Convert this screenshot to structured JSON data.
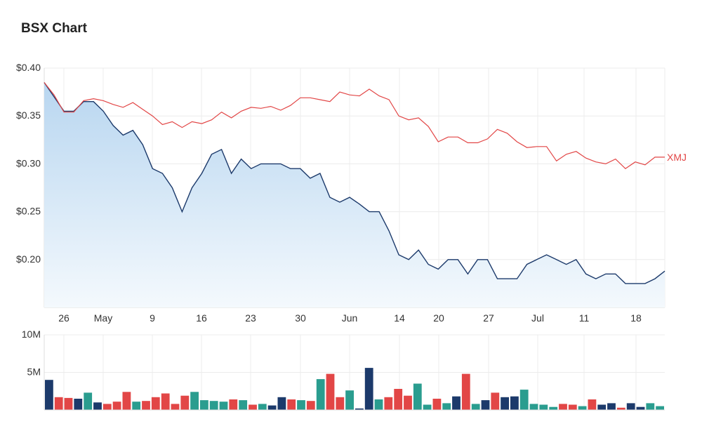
{
  "title": "BSX Chart",
  "colors": {
    "bsx_line": "#1c3a6b",
    "bsx_fill_top": "#b8d6f0",
    "bsx_fill_bottom": "#f4f9fd",
    "xmj_line": "#e24646",
    "vol_navy": "#1c3a6b",
    "vol_red": "#e24646",
    "vol_teal": "#2a9d8f",
    "grid": "#ececec"
  },
  "chart_data": [
    {
      "type": "line",
      "x_tick_labels": [
        "26",
        "May",
        "9",
        "16",
        "23",
        "30",
        "Jun",
        "14",
        "20",
        "27",
        "Jul",
        "11",
        "18"
      ],
      "y_tick_labels": [
        "$0.40",
        "$0.35",
        "$0.30",
        "$0.25",
        "$0.20"
      ],
      "ylim": [
        0.15,
        0.4
      ],
      "yticks": [
        0.4,
        0.35,
        0.3,
        0.25,
        0.2
      ],
      "grid": true,
      "series": [
        {
          "name": "",
          "style": "area",
          "values": [
            0.385,
            0.37,
            0.355,
            0.355,
            0.365,
            0.365,
            0.355,
            0.34,
            0.33,
            0.335,
            0.32,
            0.295,
            0.29,
            0.275,
            0.25,
            0.275,
            0.29,
            0.31,
            0.315,
            0.29,
            0.305,
            0.295,
            0.3,
            0.3,
            0.3,
            0.295,
            0.295,
            0.285,
            0.29,
            0.265,
            0.26,
            0.265,
            0.258,
            0.25,
            0.25,
            0.23,
            0.205,
            0.2,
            0.21,
            0.195,
            0.19,
            0.2,
            0.2,
            0.185,
            0.2,
            0.2,
            0.18,
            0.18,
            0.18,
            0.195,
            0.2,
            0.205,
            0.2,
            0.195,
            0.2,
            0.185,
            0.18,
            0.185,
            0.185,
            0.175,
            0.175,
            0.175,
            0.18,
            0.188
          ]
        },
        {
          "name": "XMJ",
          "style": "line",
          "values": [
            0.385,
            0.372,
            0.354,
            0.354,
            0.366,
            0.368,
            0.366,
            0.362,
            0.359,
            0.364,
            0.357,
            0.35,
            0.341,
            0.344,
            0.338,
            0.344,
            0.342,
            0.346,
            0.354,
            0.348,
            0.355,
            0.359,
            0.358,
            0.36,
            0.356,
            0.361,
            0.369,
            0.369,
            0.367,
            0.365,
            0.375,
            0.372,
            0.371,
            0.378,
            0.371,
            0.367,
            0.35,
            0.346,
            0.348,
            0.339,
            0.323,
            0.328,
            0.328,
            0.322,
            0.322,
            0.326,
            0.336,
            0.332,
            0.323,
            0.317,
            0.318,
            0.318,
            0.303,
            0.31,
            0.313,
            0.306,
            0.302,
            0.3,
            0.305,
            0.295,
            0.302,
            0.299,
            0.307,
            0.307
          ]
        }
      ]
    },
    {
      "type": "bar",
      "y_tick_labels": [
        "10M",
        "5M"
      ],
      "yticks": [
        10000000,
        5000000
      ],
      "ylim": [
        0,
        10000000
      ],
      "values": [
        4000000,
        1700000,
        1600000,
        1500000,
        2300000,
        1000000,
        800000,
        1100000,
        2400000,
        1100000,
        1200000,
        1700000,
        2200000,
        800000,
        1900000,
        2400000,
        1300000,
        1200000,
        1100000,
        1400000,
        1300000,
        700000,
        800000,
        600000,
        1700000,
        1400000,
        1300000,
        1200000,
        4100000,
        4800000,
        1700000,
        2600000,
        200000,
        5600000,
        1400000,
        1700000,
        2800000,
        1900000,
        3500000,
        700000,
        1500000,
        900000,
        1800000,
        4800000,
        800000,
        1300000,
        2300000,
        1700000,
        1800000,
        2700000,
        800000,
        700000,
        400000,
        800000,
        700000,
        500000,
        1400000,
        700000,
        900000,
        300000,
        900000,
        400000,
        900000,
        500000
      ],
      "bar_colors": [
        "navy",
        "red",
        "red",
        "navy",
        "teal",
        "navy",
        "red",
        "red",
        "red",
        "teal",
        "red",
        "red",
        "red",
        "red",
        "red",
        "teal",
        "teal",
        "teal",
        "teal",
        "red",
        "teal",
        "red",
        "teal",
        "navy",
        "navy",
        "red",
        "teal",
        "red",
        "teal",
        "red",
        "red",
        "teal",
        "navy",
        "navy",
        "teal",
        "red",
        "red",
        "red",
        "teal",
        "teal",
        "red",
        "teal",
        "navy",
        "red",
        "teal",
        "navy",
        "red",
        "navy",
        "navy",
        "teal",
        "teal",
        "teal",
        "teal",
        "red",
        "red",
        "teal",
        "red",
        "navy",
        "navy",
        "red",
        "navy",
        "navy",
        "teal",
        "teal"
      ]
    }
  ]
}
